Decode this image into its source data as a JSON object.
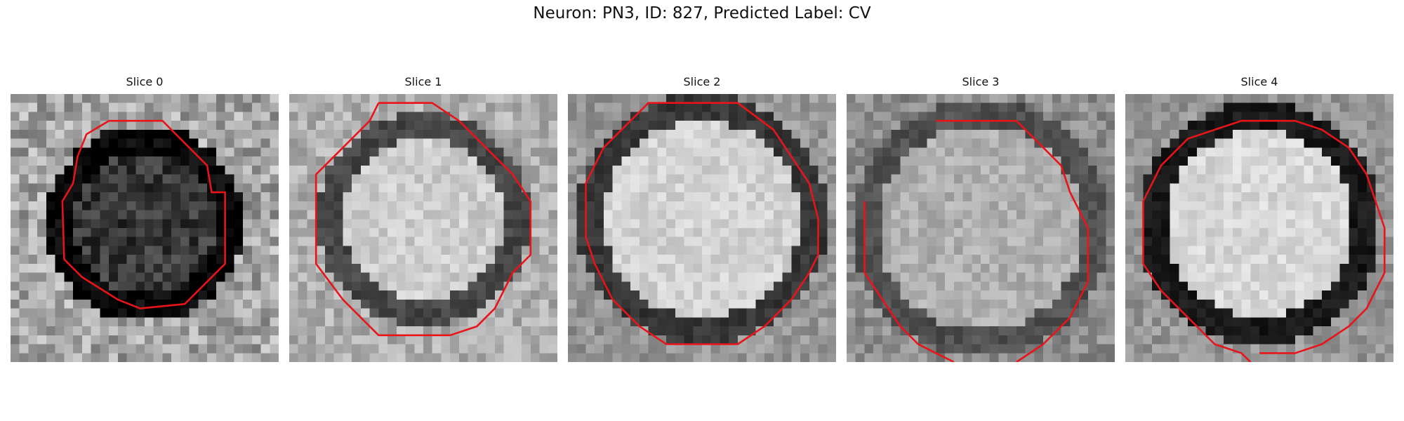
{
  "figure": {
    "title": "Neuron: PN3, ID: 827, Predicted Label: CV"
  },
  "slices": [
    {
      "label": "Slice 0"
    },
    {
      "label": "Slice 1"
    },
    {
      "label": "Slice 2"
    },
    {
      "label": "Slice 3"
    },
    {
      "label": "Slice 4"
    }
  ],
  "colors": {
    "contour": "#e8141a",
    "background": "#ffffff"
  }
}
